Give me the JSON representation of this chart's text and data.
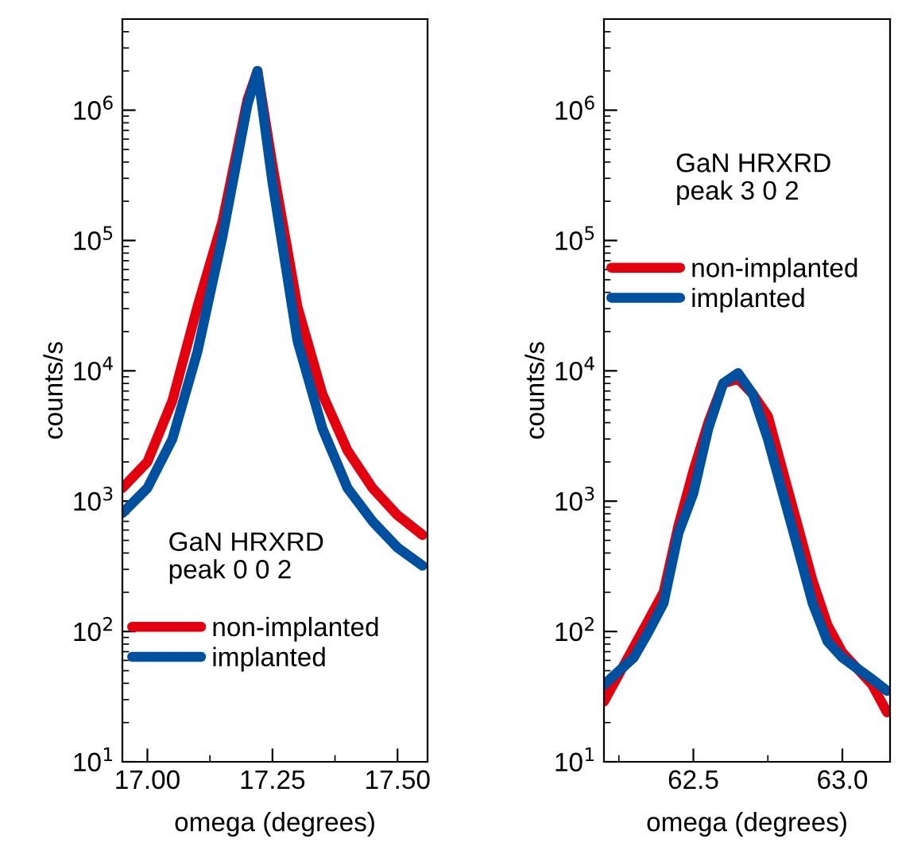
{
  "chart_data": [
    {
      "type": "line",
      "xlabel": "omega (degrees)",
      "ylabel": "counts/s",
      "annotations": [
        "GaN HRXRD\npeak 0 0 2"
      ],
      "log": "y",
      "xlim": [
        16.95,
        17.56
      ],
      "xticks": [
        {
          "value": 17.0,
          "label": "17.00"
        },
        {
          "value": 17.25,
          "label": "17.25"
        },
        {
          "value": 17.5,
          "label": "17.50"
        }
      ],
      "ylim": [
        10,
        5000000
      ],
      "yticks": [
        {
          "value": 10,
          "label": "10$^{1}$"
        },
        {
          "value": 100,
          "label": "10$^{2}$"
        },
        {
          "value": 1000,
          "label": "10$^{3}$"
        },
        {
          "value": 10000,
          "label": "10$^{4}$"
        },
        {
          "value": 100000,
          "label": "10$^{5}$"
        },
        {
          "value": 1000000,
          "label": "10$^{6}$"
        }
      ],
      "legend": "bottom left",
      "grid": false,
      "line_style": "solid",
      "marker": "none",
      "x": [
        16.95,
        17.0,
        17.05,
        17.1,
        17.15,
        17.2,
        17.22,
        17.25,
        17.3,
        17.35,
        17.4,
        17.45,
        17.5,
        17.55
      ],
      "series": [
        {
          "name": "non-implanted",
          "color": "#e3000f",
          "values": [
            1260,
            2000,
            5900,
            31000,
            140000,
            1200000,
            2000000,
            380000,
            31000,
            6600,
            2450,
            1260,
            780,
            550
          ]
        },
        {
          "name": "implanted",
          "color": "#0050a0",
          "values": [
            810,
            1260,
            3000,
            14000,
            107000,
            1100000,
            2000000,
            280000,
            17000,
            3600,
            1260,
            700,
            440,
            320
          ]
        }
      ]
    },
    {
      "type": "line",
      "xlabel": "omega (degrees)",
      "ylabel": "counts/s",
      "annotations": [
        "GaN HRXRD\npeak 3 0 2"
      ],
      "log": "y",
      "xlim": [
        62.2,
        63.16
      ],
      "xticks": [
        62.5,
        {
          "value": 63.0,
          "label": "63.0"
        }
      ],
      "ylim": [
        10,
        5000000
      ],
      "yticks": [
        {
          "value": 10,
          "label": "10$^{1}$"
        },
        {
          "value": 100,
          "label": "10$^{2}$"
        },
        {
          "value": 1000,
          "label": "10$^{3}$"
        },
        {
          "value": 10000,
          "label": "10$^{4}$"
        },
        {
          "value": 100000,
          "label": "10$^{5}$"
        },
        {
          "value": 1000000,
          "label": "10$^{6}$"
        }
      ],
      "legend": "top left",
      "grid": false,
      "line_style": "solid",
      "marker": "none",
      "x": [
        62.2,
        62.3,
        62.35,
        62.4,
        62.45,
        62.5,
        62.55,
        62.6,
        62.65,
        62.7,
        62.75,
        62.8,
        62.85,
        62.9,
        62.95,
        63.0,
        63.05,
        63.1,
        63.15
      ],
      "series": [
        {
          "name": "non-implanted",
          "color": "#e3000f",
          "values": [
            29,
            76,
            123,
            200,
            650,
            1700,
            4000,
            8000,
            8700,
            6600,
            4500,
            1700,
            650,
            245,
            112,
            69,
            52,
            39,
            24
          ]
        },
        {
          "name": "implanted",
          "color": "#0050a0",
          "values": [
            39,
            63,
            100,
            165,
            570,
            1150,
            3600,
            8000,
            9600,
            6600,
            3000,
            1150,
            440,
            165,
            84,
            63,
            52,
            43,
            35
          ]
        }
      ]
    }
  ]
}
